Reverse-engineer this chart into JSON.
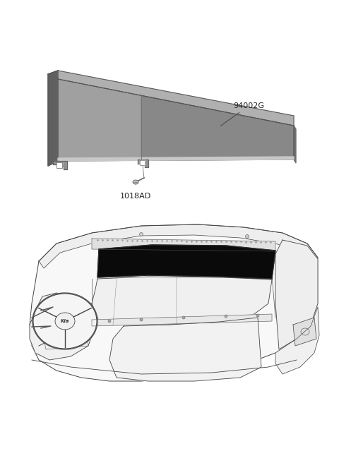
{
  "background_color": "#ffffff",
  "label_94002G": "94002G",
  "label_1018AD": "1018AD",
  "label_fontsize": 8.0,
  "line_color": "#555555",
  "part_fill_dark": "#7a7a7a",
  "part_fill_mid": "#999999",
  "part_fill_light": "#c0c0c0",
  "part_stroke": "#555555",
  "visor_top_face": "#b0b0b0",
  "visor_front_face": "#888888",
  "visor_side_face": "#707070",
  "visor_highlight": "#d0d0d0"
}
